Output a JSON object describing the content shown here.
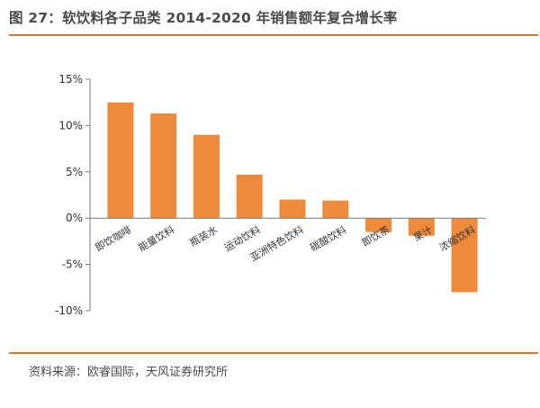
{
  "header": {
    "title": "图 27：软饮料各子品类 2014-2020 年销售额年复合增长率"
  },
  "footer": {
    "source": "资料来源：欧睿国际，天风证券研究所"
  },
  "colors": {
    "accent": "#e07a2a",
    "bar": "#ee8a3a",
    "axis": "#7f7f7f"
  },
  "chart_data": {
    "type": "bar",
    "categories": [
      "即饮咖啡",
      "能量饮料",
      "瓶装水",
      "运动饮料",
      "亚洲特色饮料",
      "碳酸饮料",
      "即饮茶",
      "果汁",
      "浓缩饮料"
    ],
    "values": [
      12.5,
      11.3,
      9.0,
      4.7,
      2.0,
      1.9,
      -1.5,
      -1.9,
      -8.0
    ],
    "yticks": [
      "15%",
      "10%",
      "5%",
      "0%",
      "-5%",
      "-10%"
    ],
    "ylim": [
      -10,
      15
    ],
    "grid": false,
    "legend": "none"
  }
}
